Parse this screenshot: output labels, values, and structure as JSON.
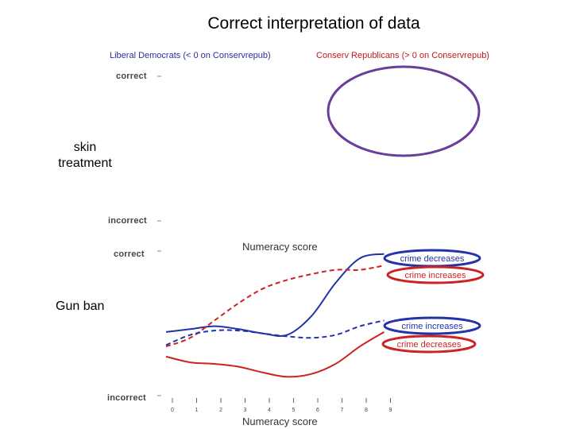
{
  "title": "Correct interpretation of data",
  "headers": {
    "liberal": "Liberal Democrats (< 0 on Conservrepub)",
    "conservative": "Conserv Republicans (> 0 on Conservrepub)"
  },
  "rows": {
    "skin": "skin treatment",
    "gun": "Gun ban"
  },
  "axis": {
    "correct": "correct",
    "incorrect": "incorrect",
    "xlabel": "Numeracy score"
  },
  "legend": {
    "top_blue": "crime decreases",
    "top_red": "crime increases",
    "bottom_blue": "crime increases",
    "bottom_red": "crime decreases"
  },
  "colors": {
    "blue": "#2233aa",
    "red": "#cc2222",
    "ellipse": "#6a3d9a"
  },
  "chart_data": {
    "type": "line",
    "title": "Gun ban",
    "xlabel": "Numeracy score",
    "ylabel": "",
    "x": [
      0,
      1,
      2,
      3,
      4,
      5,
      6,
      7,
      8,
      9
    ],
    "x_ticks": [
      "0",
      "1",
      "2",
      "3",
      "4",
      "5",
      "6",
      "7",
      "8",
      "9"
    ],
    "y_ticks": [
      "correct",
      "incorrect"
    ],
    "ylim": [
      0,
      1
    ],
    "series": [
      {
        "name": "crime decreases",
        "color": "#2233aa",
        "style": "solid",
        "values": [
          0.44,
          0.46,
          0.48,
          0.46,
          0.43,
          0.42,
          0.55,
          0.78,
          0.95,
          0.98
        ]
      },
      {
        "name": "crime increases",
        "color": "#cc2222",
        "style": "dashed",
        "values": [
          0.34,
          0.4,
          0.52,
          0.64,
          0.74,
          0.8,
          0.84,
          0.87,
          0.87,
          0.9
        ]
      },
      {
        "name": "crime increases",
        "color": "#2233aa",
        "style": "dashed",
        "values": [
          0.35,
          0.42,
          0.45,
          0.45,
          0.43,
          0.41,
          0.4,
          0.42,
          0.48,
          0.52
        ]
      },
      {
        "name": "crime decreases",
        "color": "#cc2222",
        "style": "solid",
        "values": [
          0.27,
          0.23,
          0.22,
          0.2,
          0.16,
          0.13,
          0.15,
          0.22,
          0.34,
          0.44
        ]
      }
    ]
  }
}
